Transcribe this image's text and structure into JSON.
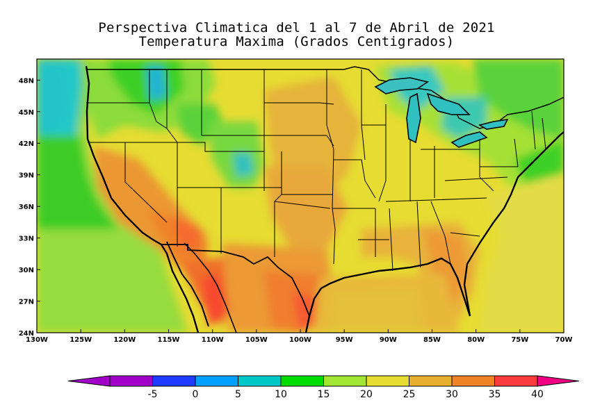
{
  "title": {
    "line1": "Perspectiva Climatica del 1 al 7 de Abril de 2021",
    "line2": "Temperatura Maxima (Grados Centigrados)"
  },
  "map": {
    "lat_ticks": [
      "48N",
      "45N",
      "42N",
      "39N",
      "36N",
      "33N",
      "30N",
      "27N",
      "24N"
    ],
    "lon_ticks": [
      "130W",
      "125W",
      "120W",
      "115W",
      "110W",
      "105W",
      "100W",
      "95W",
      "90W",
      "85W",
      "80W",
      "75W",
      "70W"
    ],
    "extent": {
      "lon": [
        -130,
        -70
      ],
      "lat": [
        24,
        50
      ]
    }
  },
  "colorbar": {
    "labels": [
      "-5",
      "0",
      "5",
      "10",
      "15",
      "20",
      "25",
      "30",
      "35",
      "40"
    ],
    "colors": [
      "#a000c8",
      "#1e3cff",
      "#00a0ff",
      "#00c8c8",
      "#00dc00",
      "#a0e632",
      "#e6dc32",
      "#e6af2d",
      "#f08228",
      "#fa3c3c"
    ],
    "over_color": "#f00082",
    "under_color": "#a000c8"
  },
  "legend_colors": {
    "ocean_west": "#7cd64a",
    "ocean_east": "#e4dc46",
    "gulf": "#e8b83a"
  }
}
